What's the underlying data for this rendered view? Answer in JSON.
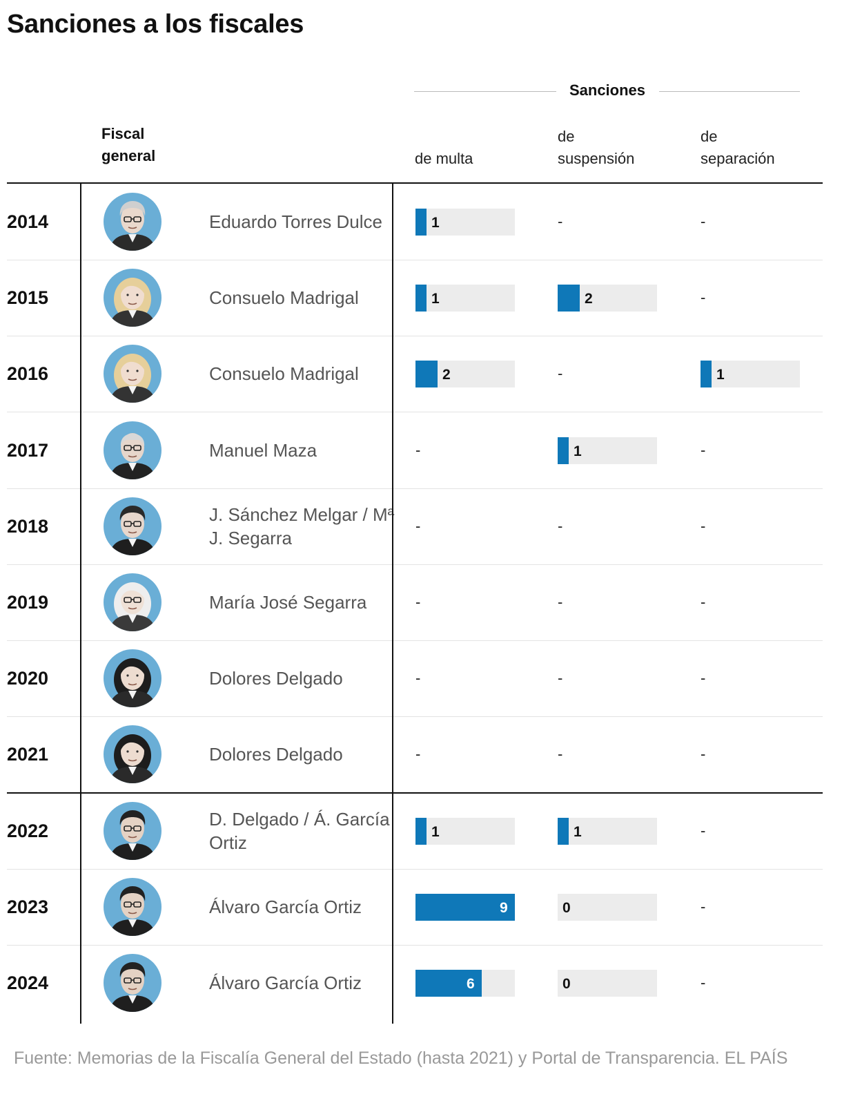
{
  "title": "Sanciones a los fiscales",
  "group_header": "Sanciones",
  "columns": {
    "fiscal_line1": "Fiscal",
    "fiscal_line2": "general",
    "multa": "de multa",
    "suspension_line1": "de",
    "suspension_line2": "suspensión",
    "separacion_line1": "de",
    "separacion_line2": "separación"
  },
  "chart_data": {
    "type": "table",
    "max_value": 9,
    "rows": [
      {
        "year": "2014",
        "name": "Eduardo Torres Dulce",
        "multa": 1,
        "suspension": null,
        "separacion": null,
        "portrait": "man-grey-hair-glasses"
      },
      {
        "year": "2015",
        "name": "Consuelo Madrigal",
        "multa": 1,
        "suspension": 2,
        "separacion": null,
        "portrait": "woman-blonde-hair"
      },
      {
        "year": "2016",
        "name": "Consuelo Madrigal",
        "multa": 2,
        "suspension": null,
        "separacion": 1,
        "portrait": "woman-blonde-hair"
      },
      {
        "year": "2017",
        "name": "Manuel Maza",
        "multa": null,
        "suspension": 1,
        "separacion": null,
        "portrait": "man-bald-glasses"
      },
      {
        "year": "2018",
        "name": "J. Sánchez Melgar / Mª J. Segarra",
        "multa": null,
        "suspension": null,
        "separacion": null,
        "portrait": "man-dark-hair-glasses"
      },
      {
        "year": "2019",
        "name": "María José Segarra",
        "multa": null,
        "suspension": null,
        "separacion": null,
        "portrait": "woman-white-hair-glasses"
      },
      {
        "year": "2020",
        "name": "Dolores Delgado",
        "multa": null,
        "suspension": null,
        "separacion": null,
        "portrait": "woman-dark-hair"
      },
      {
        "year": "2021",
        "name": "Dolores Delgado",
        "multa": null,
        "suspension": null,
        "separacion": null,
        "portrait": "woman-dark-hair"
      },
      {
        "year": "2022",
        "name": "D. Delgado / Á. García Ortiz",
        "multa": 1,
        "suspension": 1,
        "separacion": null,
        "portrait": "man-dark-curly-hair-glasses"
      },
      {
        "year": "2023",
        "name": "Álvaro García Ortiz",
        "multa": 9,
        "suspension": 0,
        "separacion": null,
        "portrait": "man-dark-curly-hair-glasses"
      },
      {
        "year": "2024",
        "name": "Álvaro García Ortiz",
        "multa": 6,
        "suspension": 0,
        "separacion": null,
        "portrait": "man-dark-curly-hair-glasses"
      }
    ]
  },
  "empty_marker": "-",
  "colors": {
    "bar": "#0f78b8",
    "track": "#ececec",
    "avatar_bg": "#6aaed6"
  },
  "footer": "Fuente: Memorias de la Fiscalía General del Estado (hasta 2021) y Portal de Transparencia. EL PAÍS"
}
